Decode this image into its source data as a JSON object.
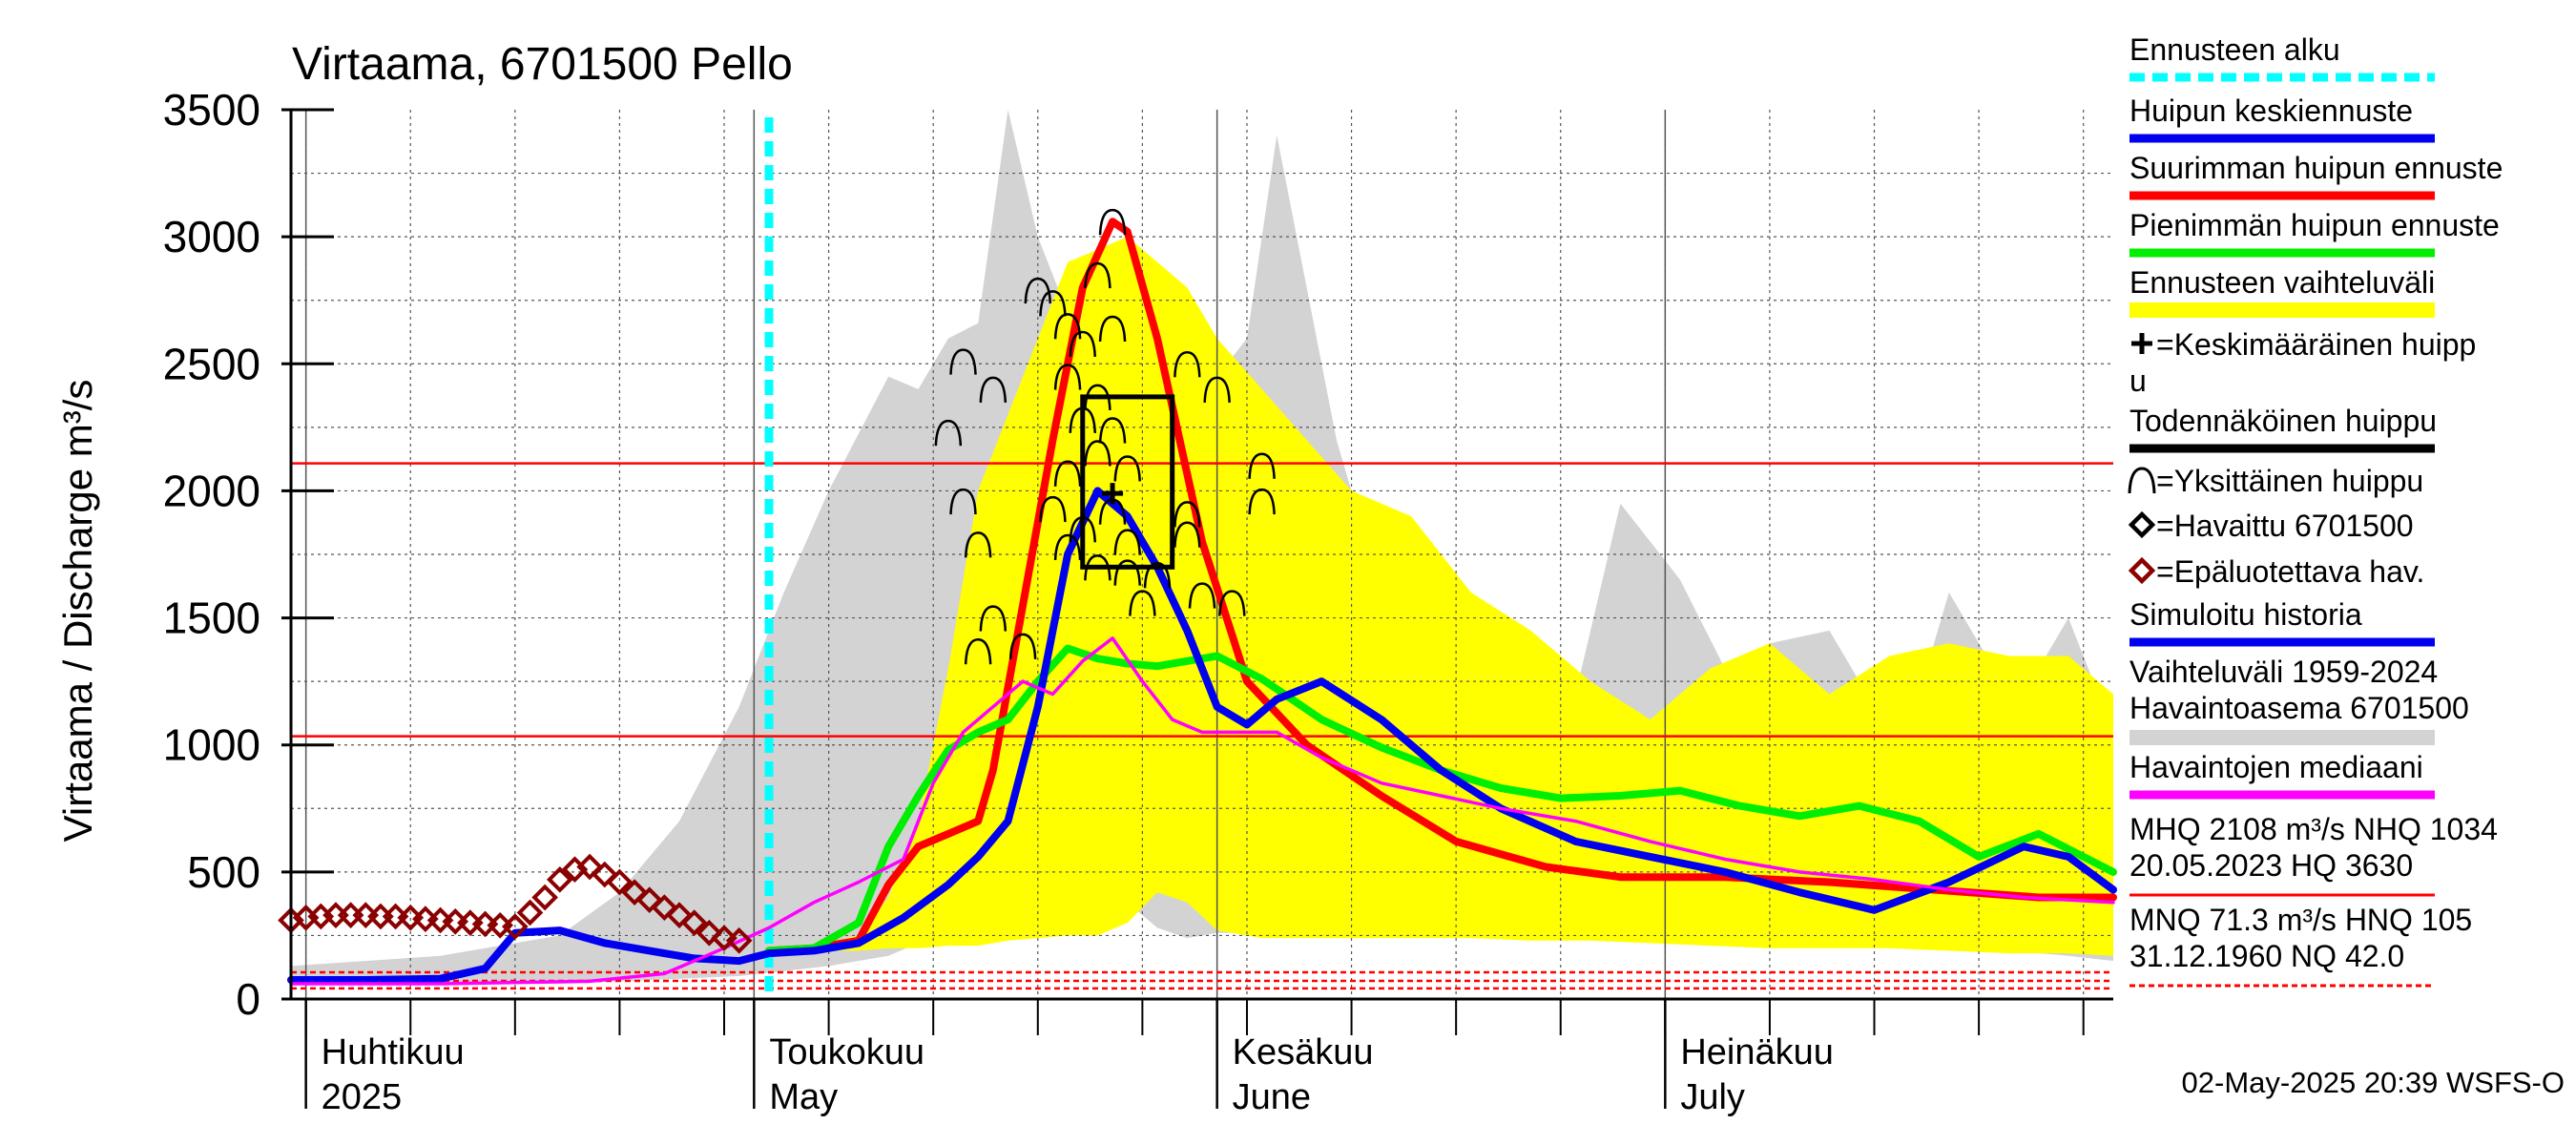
{
  "chart_data": {
    "type": "line",
    "title": "Virtaama, 6701500 Pello",
    "ylabel": "Virtaama / Discharge   m³/s",
    "ylim": [
      0,
      3500
    ],
    "yticks": [
      0,
      500,
      1000,
      1500,
      2000,
      2500,
      3000,
      3500
    ],
    "xlim": [
      "2025-03-31",
      "2025-07-31"
    ],
    "month_labels": [
      {
        "date": "2025-04-01",
        "fi": "Huhtikuu",
        "en": "2025"
      },
      {
        "date": "2025-05-01",
        "fi": "Toukokuu",
        "en": "May"
      },
      {
        "date": "2025-06-01",
        "fi": "Kesäkuu",
        "en": "June"
      },
      {
        "date": "2025-07-01",
        "fi": "Heinäkuu",
        "en": "July"
      }
    ],
    "grid": true,
    "forecast_start": "2025-05-02",
    "reference_lines": [
      {
        "name": "MHQ",
        "value": 2108,
        "color": "#ff0000",
        "style": "solid"
      },
      {
        "name": "NHQ",
        "value": 1034,
        "color": "#ff0000",
        "style": "solid"
      },
      {
        "name": "MNQ",
        "value": 71.3,
        "color": "#ff0000",
        "style": "dashed"
      },
      {
        "name": "HNQ",
        "value": 105,
        "color": "#ff0000",
        "style": "dashed"
      },
      {
        "name": "NQ",
        "value": 42.0,
        "color": "#ff0000",
        "style": "dashed"
      }
    ],
    "history_range": {
      "name": "Vaihteluväli 1959-2024",
      "color": "#d3d3d3",
      "x": [
        "2025-03-31",
        "2025-04-10",
        "2025-04-18",
        "2025-04-22",
        "2025-04-26",
        "2025-04-30",
        "2025-05-03",
        "2025-05-06",
        "2025-05-10",
        "2025-05-12",
        "2025-05-14",
        "2025-05-16",
        "2025-05-18",
        "2025-05-20",
        "2025-05-22",
        "2025-05-24",
        "2025-05-26",
        "2025-05-28",
        "2025-05-30",
        "2025-06-01",
        "2025-06-03",
        "2025-06-05",
        "2025-06-07",
        "2025-06-09",
        "2025-06-11",
        "2025-06-15",
        "2025-06-20",
        "2025-06-25",
        "2025-06-28",
        "2025-07-02",
        "2025-07-05",
        "2025-07-08",
        "2025-07-12",
        "2025-07-14",
        "2025-07-17",
        "2025-07-20",
        "2025-07-23",
        "2025-07-26",
        "2025-07-28",
        "2025-07-31"
      ],
      "upper": [
        130,
        170,
        250,
        420,
        700,
        1150,
        1600,
        2000,
        2450,
        2400,
        2600,
        2660,
        3500,
        3000,
        2700,
        2900,
        2850,
        2550,
        2550,
        2450,
        2600,
        3400,
        2800,
        2200,
        1800,
        1500,
        1350,
        1200,
        1950,
        1650,
        1300,
        1400,
        1450,
        1250,
        1000,
        1600,
        1300,
        1300,
        1500,
        1050
      ],
      "lower": [
        60,
        60,
        60,
        70,
        80,
        90,
        110,
        130,
        170,
        220,
        280,
        260,
        270,
        320,
        380,
        600,
        380,
        280,
        240,
        260,
        260,
        240,
        280,
        300,
        310,
        310,
        340,
        280,
        280,
        230,
        220,
        210,
        230,
        210,
        200,
        200,
        190,
        180,
        170,
        150
      ]
    },
    "forecast_range": {
      "name": "Ennusteen vaihteluväli",
      "color": "#ffff00",
      "x": [
        "2025-05-02",
        "2025-05-05",
        "2025-05-08",
        "2025-05-10",
        "2025-05-12",
        "2025-05-14",
        "2025-05-16",
        "2025-05-18",
        "2025-05-20",
        "2025-05-22",
        "2025-05-24",
        "2025-05-26",
        "2025-05-28",
        "2025-05-30",
        "2025-06-01",
        "2025-06-04",
        "2025-06-07",
        "2025-06-10",
        "2025-06-14",
        "2025-06-18",
        "2025-06-22",
        "2025-06-26",
        "2025-06-30",
        "2025-07-04",
        "2025-07-08",
        "2025-07-12",
        "2025-07-16",
        "2025-07-20",
        "2025-07-24",
        "2025-07-28",
        "2025-07-31"
      ],
      "upper": [
        200,
        210,
        250,
        400,
        700,
        1300,
        2000,
        2300,
        2600,
        2900,
        2950,
        3000,
        2900,
        2800,
        2600,
        2400,
        2200,
        2000,
        1900,
        1600,
        1450,
        1250,
        1100,
        1300,
        1400,
        1200,
        1350,
        1400,
        1350,
        1350,
        1200
      ],
      "lower": [
        190,
        190,
        190,
        200,
        200,
        210,
        210,
        230,
        240,
        250,
        250,
        300,
        420,
        380,
        270,
        240,
        240,
        240,
        240,
        240,
        230,
        230,
        220,
        210,
        200,
        200,
        200,
        190,
        180,
        180,
        170
      ]
    },
    "series": [
      {
        "name": "Suurimman huipun ennuste",
        "color": "#ff0000",
        "x": [
          "2025-05-02",
          "2025-05-05",
          "2025-05-08",
          "2025-05-10",
          "2025-05-12",
          "2025-05-14",
          "2025-05-16",
          "2025-05-17",
          "2025-05-19",
          "2025-05-21",
          "2025-05-23",
          "2025-05-25",
          "2025-05-26",
          "2025-05-28",
          "2025-05-31",
          "2025-06-03",
          "2025-06-07",
          "2025-06-12",
          "2025-06-17",
          "2025-06-23",
          "2025-06-28",
          "2025-07-05",
          "2025-07-12",
          "2025-07-19",
          "2025-07-26",
          "2025-07-31"
        ],
        "y": [
          190,
          200,
          230,
          450,
          600,
          650,
          700,
          900,
          1550,
          2200,
          2800,
          3060,
          3020,
          2600,
          1800,
          1250,
          1000,
          800,
          620,
          520,
          480,
          480,
          460,
          430,
          400,
          400
        ]
      },
      {
        "name": "Pienimmän huipun ennuste",
        "color": "#00ee00",
        "x": [
          "2025-05-02",
          "2025-05-05",
          "2025-05-08",
          "2025-05-10",
          "2025-05-12",
          "2025-05-14",
          "2025-05-16",
          "2025-05-18",
          "2025-05-20",
          "2025-05-22",
          "2025-05-24",
          "2025-05-26",
          "2025-05-28",
          "2025-05-30",
          "2025-06-01",
          "2025-06-04",
          "2025-06-08",
          "2025-06-12",
          "2025-06-16",
          "2025-06-20",
          "2025-06-24",
          "2025-06-28",
          "2025-07-02",
          "2025-07-06",
          "2025-07-10",
          "2025-07-14",
          "2025-07-18",
          "2025-07-22",
          "2025-07-26",
          "2025-07-31"
        ],
        "y": [
          190,
          200,
          300,
          600,
          800,
          980,
          1050,
          1100,
          1250,
          1380,
          1340,
          1320,
          1310,
          1330,
          1350,
          1260,
          1100,
          990,
          900,
          830,
          790,
          800,
          820,
          760,
          720,
          760,
          700,
          560,
          650,
          500
        ]
      },
      {
        "name": "Huipun keskiennuste",
        "color": "#0000ee",
        "x": [
          "2025-03-31",
          "2025-04-05",
          "2025-04-10",
          "2025-04-13",
          "2025-04-15",
          "2025-04-18",
          "2025-04-21",
          "2025-04-24",
          "2025-04-27",
          "2025-04-30",
          "2025-05-02",
          "2025-05-05",
          "2025-05-08",
          "2025-05-11",
          "2025-05-14",
          "2025-05-16",
          "2025-05-18",
          "2025-05-20",
          "2025-05-22",
          "2025-05-24",
          "2025-05-26",
          "2025-05-28",
          "2025-05-30",
          "2025-06-01",
          "2025-06-03",
          "2025-06-05",
          "2025-06-08",
          "2025-06-12",
          "2025-06-16",
          "2025-06-20",
          "2025-06-25",
          "2025-06-30",
          "2025-07-05",
          "2025-07-10",
          "2025-07-15",
          "2025-07-20",
          "2025-07-25",
          "2025-07-28",
          "2025-07-31"
        ],
        "y": [
          75,
          75,
          80,
          120,
          260,
          270,
          220,
          190,
          160,
          150,
          180,
          190,
          220,
          320,
          450,
          560,
          700,
          1150,
          1750,
          2000,
          1900,
          1700,
          1450,
          1150,
          1080,
          1180,
          1250,
          1100,
          900,
          750,
          620,
          560,
          500,
          420,
          350,
          460,
          600,
          560,
          430
        ]
      },
      {
        "name": "Havaintojen mediaani",
        "color": "#ff00ff",
        "x": [
          "2025-03-31",
          "2025-04-10",
          "2025-04-20",
          "2025-04-25",
          "2025-04-29",
          "2025-05-02",
          "2025-05-05",
          "2025-05-08",
          "2025-05-11",
          "2025-05-13",
          "2025-05-15",
          "2025-05-17",
          "2025-05-19",
          "2025-05-21",
          "2025-05-23",
          "2025-05-25",
          "2025-05-27",
          "2025-05-29",
          "2025-05-31",
          "2025-06-02",
          "2025-06-05",
          "2025-06-08",
          "2025-06-12",
          "2025-06-16",
          "2025-06-20",
          "2025-06-25",
          "2025-06-30",
          "2025-07-05",
          "2025-07-10",
          "2025-07-15",
          "2025-07-20",
          "2025-07-25",
          "2025-07-31"
        ],
        "y": [
          60,
          60,
          70,
          100,
          200,
          280,
          380,
          460,
          550,
          850,
          1050,
          1150,
          1250,
          1200,
          1330,
          1420,
          1250,
          1100,
          1050,
          1050,
          1050,
          950,
          850,
          800,
          750,
          700,
          620,
          550,
          500,
          470,
          430,
          400,
          380
        ]
      }
    ],
    "observed": {
      "name": "Epäluotettava hav.",
      "color": "#8b0000",
      "x": [
        "2025-03-31",
        "2025-04-01",
        "2025-04-02",
        "2025-04-03",
        "2025-04-04",
        "2025-04-05",
        "2025-04-06",
        "2025-04-07",
        "2025-04-08",
        "2025-04-09",
        "2025-04-10",
        "2025-04-11",
        "2025-04-12",
        "2025-04-13",
        "2025-04-14",
        "2025-04-15",
        "2025-04-16",
        "2025-04-17",
        "2025-04-18",
        "2025-04-19",
        "2025-04-20",
        "2025-04-21",
        "2025-04-22",
        "2025-04-23",
        "2025-04-24",
        "2025-04-25",
        "2025-04-26",
        "2025-04-27",
        "2025-04-28",
        "2025-04-29",
        "2025-04-30"
      ],
      "y": [
        310,
        320,
        325,
        330,
        330,
        330,
        325,
        325,
        320,
        315,
        310,
        305,
        300,
        295,
        290,
        285,
        340,
        400,
        470,
        510,
        520,
        490,
        460,
        420,
        390,
        360,
        330,
        300,
        260,
        240,
        230
      ]
    },
    "peak_box": {
      "x_start": "2025-05-23",
      "x_end": "2025-05-29",
      "y_low": 1700,
      "y_high": 2370,
      "mean_x": "2025-05-25",
      "mean_y": 1990
    },
    "individual_peaks": [
      {
        "x": "2025-05-14",
        "y": 2230
      },
      {
        "x": "2025-05-15",
        "y": 2510
      },
      {
        "x": "2025-05-17",
        "y": 2400
      },
      {
        "x": "2025-05-15",
        "y": 1960
      },
      {
        "x": "2025-05-16",
        "y": 1790
      },
      {
        "x": "2025-05-17",
        "y": 1500
      },
      {
        "x": "2025-05-16",
        "y": 1370
      },
      {
        "x": "2025-05-19",
        "y": 1390
      },
      {
        "x": "2025-05-20",
        "y": 2790
      },
      {
        "x": "2025-05-21",
        "y": 2740
      },
      {
        "x": "2025-05-22",
        "y": 2650
      },
      {
        "x": "2025-05-23",
        "y": 2580
      },
      {
        "x": "2025-05-22",
        "y": 2450
      },
      {
        "x": "2025-05-23",
        "y": 2280
      },
      {
        "x": "2025-05-24",
        "y": 2150
      },
      {
        "x": "2025-05-22",
        "y": 2070
      },
      {
        "x": "2025-05-21",
        "y": 1930
      },
      {
        "x": "2025-05-23",
        "y": 1850
      },
      {
        "x": "2025-05-22",
        "y": 1780
      },
      {
        "x": "2025-05-24",
        "y": 1700
      },
      {
        "x": "2025-05-25",
        "y": 3060
      },
      {
        "x": "2025-05-24",
        "y": 2850
      },
      {
        "x": "2025-05-25",
        "y": 2640
      },
      {
        "x": "2025-05-24",
        "y": 2370
      },
      {
        "x": "2025-05-25",
        "y": 2240
      },
      {
        "x": "2025-05-26",
        "y": 2090
      },
      {
        "x": "2025-05-25",
        "y": 1920
      },
      {
        "x": "2025-05-26",
        "y": 1800
      },
      {
        "x": "2025-05-26",
        "y": 1680
      },
      {
        "x": "2025-05-27",
        "y": 1560
      },
      {
        "x": "2025-05-28",
        "y": 1670
      },
      {
        "x": "2025-05-30",
        "y": 2500
      },
      {
        "x": "2025-06-01",
        "y": 2400
      },
      {
        "x": "2025-05-30",
        "y": 1910
      },
      {
        "x": "2025-05-30",
        "y": 1830
      },
      {
        "x": "2025-05-31",
        "y": 1590
      },
      {
        "x": "2025-06-02",
        "y": 1560
      },
      {
        "x": "2025-06-04",
        "y": 2100
      },
      {
        "x": "2025-06-04",
        "y": 1960
      }
    ]
  },
  "legend": [
    {
      "label": "Ennusteen alku",
      "kind": "dashed-line",
      "color": "#00ffff"
    },
    {
      "label": "Huipun keskiennuste",
      "kind": "line",
      "color": "#0000ee"
    },
    {
      "label": "Suurimman huipun ennuste",
      "kind": "line",
      "color": "#ff0000"
    },
    {
      "label": "Pienimmän huipun ennuste",
      "kind": "line",
      "color": "#00ee00"
    },
    {
      "label": "Ennusteen vaihteluväli",
      "kind": "band",
      "color": "#ffff00"
    },
    {
      "label": "=Keskimääräinen huipp",
      "label2": "u",
      "kind": "plus",
      "color": "#000000"
    },
    {
      "label": "Todennäköinen huippu",
      "kind": "line",
      "color": "#000000"
    },
    {
      "label": "=Yksittäinen huippu",
      "kind": "arc",
      "color": "#000000"
    },
    {
      "label": "=Havaittu 6701500",
      "kind": "diamond",
      "color": "#000000"
    },
    {
      "label": "=Epäluotettava hav.",
      "kind": "diamond",
      "color": "#8b0000"
    },
    {
      "label": "Simuloitu historia",
      "kind": "line",
      "color": "#0000ee"
    },
    {
      "label": "Vaihteluväli 1959-2024",
      "label2": " Havaintoasema 6701500",
      "kind": "band",
      "color": "#d3d3d3"
    },
    {
      "label": "Havaintojen mediaani",
      "kind": "line",
      "color": "#ff00ff"
    },
    {
      "label": "MHQ 2108 m³/s NHQ 1034",
      "label2": "20.05.2023 HQ 3630",
      "kind": "line",
      "color": "#ff0000"
    },
    {
      "label": "MNQ 71.3 m³/s HNQ  105",
      "label2": "31.12.1960 NQ 42.0",
      "kind": "dashed-line",
      "color": "#ff0000"
    }
  ],
  "footer": "02-May-2025 20:39 WSFS-O"
}
